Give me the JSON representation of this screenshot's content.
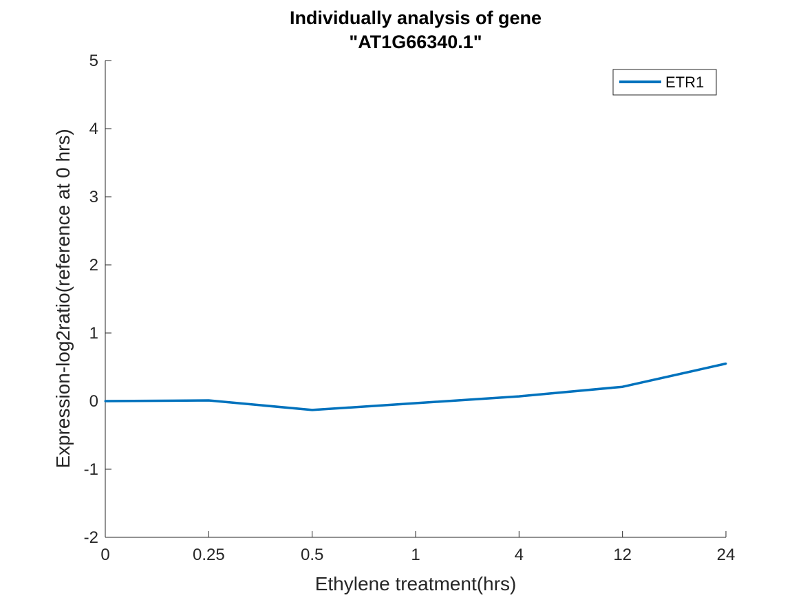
{
  "chart_data": {
    "type": "line",
    "title": "Individually analysis of gene",
    "subtitle": "\"AT1G66340.1\"",
    "xlabel": "Ethylene treatment(hrs)",
    "ylabel": "Expression-log2ratio(reference at 0 hrs)",
    "categories": [
      "0",
      "0.25",
      "0.5",
      "1",
      "4",
      "12",
      "24"
    ],
    "ylim": [
      -2,
      5
    ],
    "yticks": [
      -2,
      -1,
      0,
      1,
      2,
      3,
      4,
      5
    ],
    "grid": false,
    "legend_position": "top-right",
    "series": [
      {
        "name": "ETR1",
        "color": "#0072BD",
        "values": [
          0.0,
          0.01,
          -0.13,
          -0.03,
          0.07,
          0.21,
          0.55
        ]
      }
    ]
  }
}
